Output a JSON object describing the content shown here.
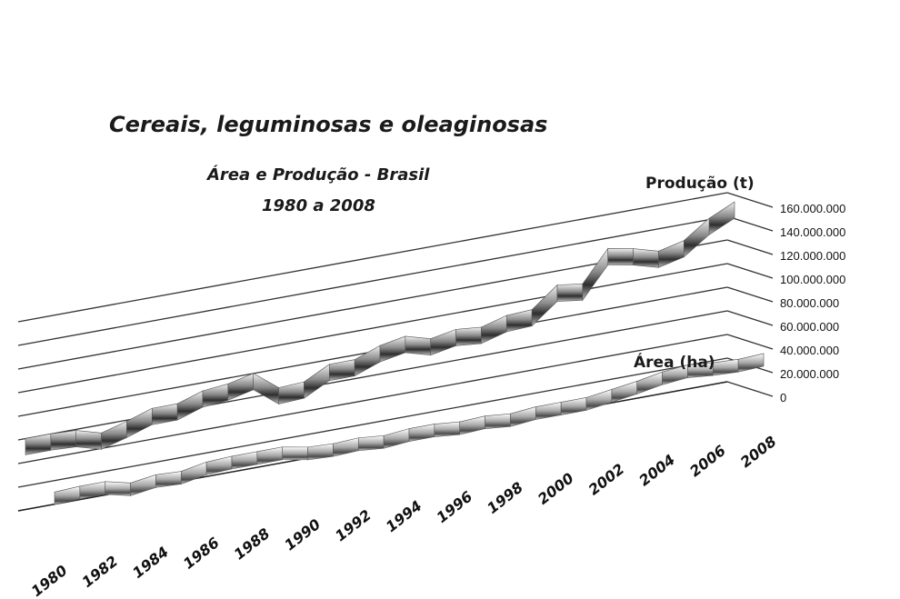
{
  "chart_data": {
    "type": "line",
    "title": "Cereais, leguminosas e oleaginosas",
    "subtitle_line1": "Área e Produção - Brasil",
    "subtitle_line2": "1980 a 2008",
    "x": [
      1980,
      1981,
      1982,
      1983,
      1984,
      1985,
      1986,
      1987,
      1988,
      1989,
      1990,
      1991,
      1992,
      1993,
      1994,
      1995,
      1996,
      1997,
      1998,
      1999,
      2000,
      2001,
      2002,
      2003,
      2004,
      2005,
      2006,
      2007,
      2008
    ],
    "x_tick_labels": [
      "1980",
      "1982",
      "1984",
      "1986",
      "1988",
      "1990",
      "1992",
      "1994",
      "1996",
      "1998",
      "2000",
      "2002",
      "2004",
      "2006",
      "2008"
    ],
    "y_tick_labels": [
      "160.000.000",
      "140.000.000",
      "120.000.000",
      "100.000.000",
      "80.000.000",
      "60.000.000",
      "40.000.000",
      "20.000.000",
      "0"
    ],
    "ylim": [
      0,
      160000000
    ],
    "three_d": true,
    "grid": true,
    "series": [
      {
        "name": "Produção (t)",
        "values": [
          52000000,
          52000000,
          51000000,
          45000000,
          51000000,
          58000000,
          58000000,
          65000000,
          67000000,
          72000000,
          56000000,
          57000000,
          68000000,
          68000000,
          76000000,
          80000000,
          74000000,
          78000000,
          76000000,
          82000000,
          83000000,
          100000000,
          97000000,
          123000000,
          119000000,
          113000000,
          118000000,
          133000000,
          143000000
        ]
      },
      {
        "name": "Área (ha)",
        "values": [
          39000000,
          40000000,
          40000000,
          35000000,
          38000000,
          37000000,
          41000000,
          42000000,
          42000000,
          42000000,
          38000000,
          37000000,
          38000000,
          36000000,
          38000000,
          38000000,
          36000000,
          37000000,
          35000000,
          37000000,
          37000000,
          37000000,
          40000000,
          43000000,
          47000000,
          49000000,
          47000000,
          46000000,
          47000000
        ]
      }
    ]
  }
}
